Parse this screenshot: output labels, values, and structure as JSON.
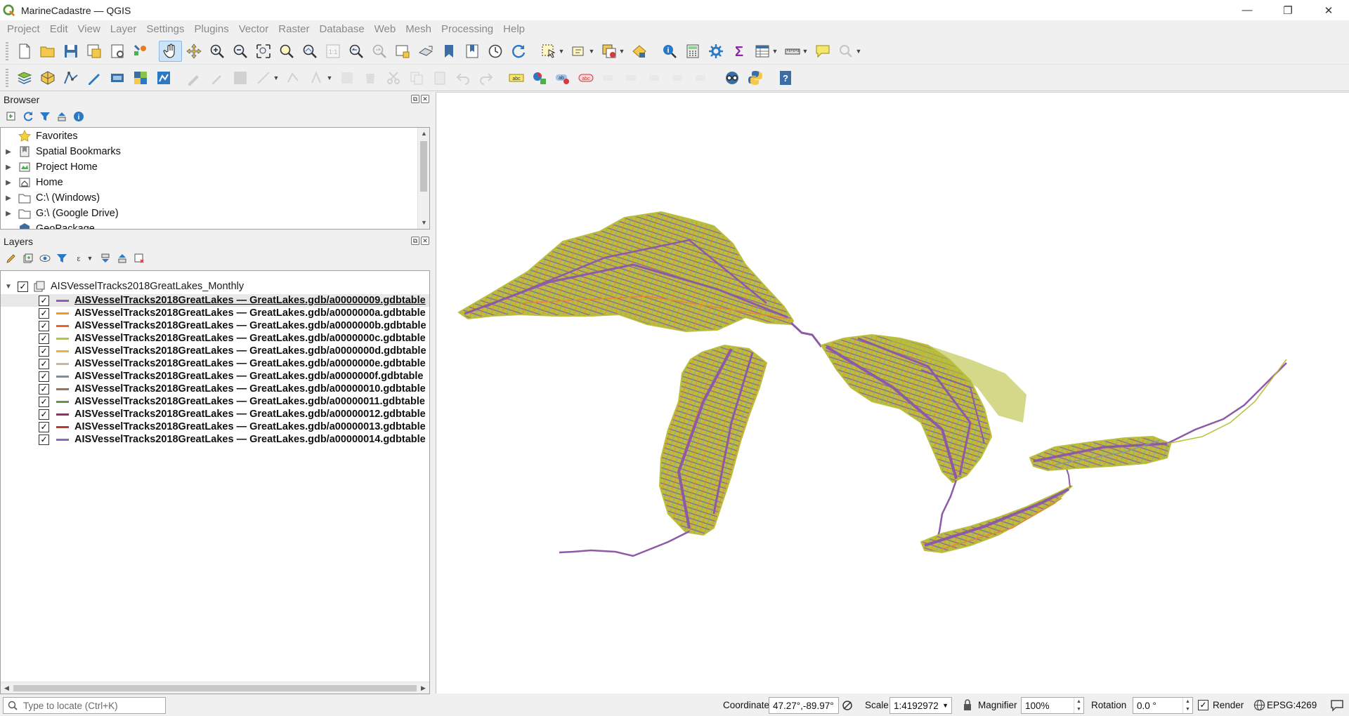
{
  "window": {
    "title": "MarineCadastre — QGIS",
    "controls": {
      "minimize": "—",
      "restore": "❐",
      "close": "✕"
    }
  },
  "menubar": [
    "Project",
    "Edit",
    "View",
    "Layer",
    "Settings",
    "Plugins",
    "Vector",
    "Raster",
    "Database",
    "Web",
    "Mesh",
    "Processing",
    "Help"
  ],
  "browser": {
    "title": "Browser",
    "items": [
      {
        "label": "Favorites",
        "icon": "star-icon",
        "expandable": false
      },
      {
        "label": "Spatial Bookmarks",
        "icon": "bookmark-icon",
        "expandable": true
      },
      {
        "label": "Project Home",
        "icon": "project-home-icon",
        "expandable": true
      },
      {
        "label": "Home",
        "icon": "home-folder-icon",
        "expandable": true
      },
      {
        "label": "C:\\ (Windows)",
        "icon": "folder-icon",
        "expandable": true
      },
      {
        "label": "G:\\ (Google Drive)",
        "icon": "folder-icon",
        "expandable": true
      },
      {
        "label": "GeoPackage",
        "icon": "geopackage-icon",
        "expandable": false
      }
    ]
  },
  "layers": {
    "title": "Layers",
    "group": {
      "label": "AISVesselTracks2018GreatLakes_Monthly",
      "checked": true
    },
    "items": [
      {
        "label": "AISVesselTracks2018GreatLakes — GreatLakes.gdb/a00000009.gdbtable",
        "color": "#9b59b6",
        "checked": true,
        "selected": true
      },
      {
        "label": "AISVesselTracks2018GreatLakes — GreatLakes.gdb/a0000000a.gdbtable",
        "color": "#f39c12",
        "checked": true
      },
      {
        "label": "AISVesselTracks2018GreatLakes — GreatLakes.gdb/a0000000b.gdbtable",
        "color": "#e8622c",
        "checked": true
      },
      {
        "label": "AISVesselTracks2018GreatLakes — GreatLakes.gdb/a0000000c.gdbtable",
        "color": "#b5c534",
        "checked": true
      },
      {
        "label": "AISVesselTracks2018GreatLakes — GreatLakes.gdb/a0000000d.gdbtable",
        "color": "#e6b43c",
        "checked": true
      },
      {
        "label": "AISVesselTracks2018GreatLakes — GreatLakes.gdb/a0000000e.gdbtable",
        "color": "#c8b99a",
        "checked": true
      },
      {
        "label": "AISVesselTracks2018GreatLakes — GreatLakes.gdb/a0000000f.gdbtable",
        "color": "#7f8c99",
        "checked": true
      },
      {
        "label": "AISVesselTracks2018GreatLakes — GreatLakes.gdb/a00000010.gdbtable",
        "color": "#a0705a",
        "checked": true
      },
      {
        "label": "AISVesselTracks2018GreatLakes — GreatLakes.gdb/a00000011.gdbtable",
        "color": "#5a9a4a",
        "checked": true
      },
      {
        "label": "AISVesselTracks2018GreatLakes — GreatLakes.gdb/a00000012.gdbtable",
        "color": "#8e2f6a",
        "checked": true
      },
      {
        "label": "AISVesselTracks2018GreatLakes — GreatLakes.gdb/a00000013.gdbtable",
        "color": "#c0392b",
        "checked": true
      },
      {
        "label": "AISVesselTracks2018GreatLakes — GreatLakes.gdb/a00000014.gdbtable",
        "color": "#8e6ab8",
        "checked": true
      }
    ]
  },
  "statusbar": {
    "locate_placeholder": "Type to locate (Ctrl+K)",
    "coordinate_label": "Coordinate",
    "coordinate_value": "47.27°,-89.97°",
    "scale_label": "Scale",
    "scale_value": "1:4192972",
    "magnifier_label": "Magnifier",
    "magnifier_value": "100%",
    "rotation_label": "Rotation",
    "rotation_value": "0.0 °",
    "render_label": "Render",
    "render_checked": true,
    "crs": "EPSG:4269"
  },
  "colors": {
    "track_purple": "#8e5aa8",
    "track_olive": "#b8bf3a",
    "track_orange": "#e8843a",
    "track_gray": "#8a9a9a",
    "accent": "#2b6cb0"
  }
}
